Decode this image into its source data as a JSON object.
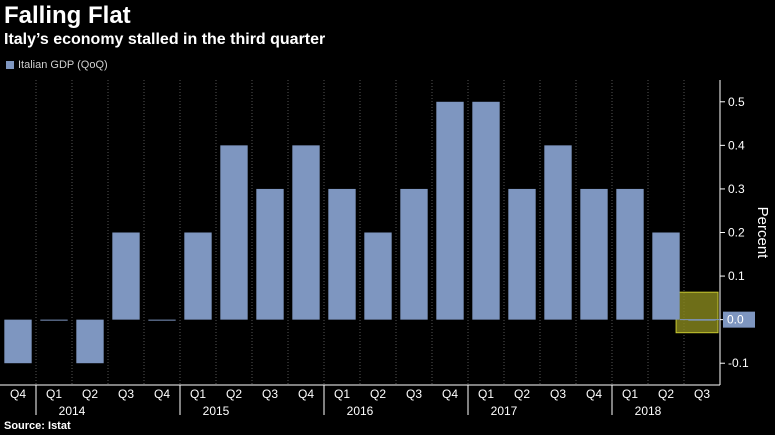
{
  "title": "Falling Flat",
  "subtitle": "Italy’s economy stalled in the third quarter",
  "source": "Source: Istat",
  "colors": {
    "background": "#000000",
    "bar": "#7e96c0",
    "highlight_fill": "#8a8a1e",
    "highlight_stroke": "#c8c830",
    "grid": "#555555",
    "axis": "#ffffff",
    "last_value_box": "#7e96c0"
  },
  "chart_data": {
    "type": "bar",
    "series": [
      {
        "name": "Italian GDP (QoQ)",
        "values": [
          -0.1,
          0.0,
          -0.1,
          0.2,
          0.0,
          0.2,
          0.4,
          0.3,
          0.4,
          0.3,
          0.2,
          0.3,
          0.5,
          0.5,
          0.3,
          0.4,
          0.3,
          0.3,
          0.2,
          0.0
        ]
      }
    ],
    "categories": [
      "Q4",
      "Q1",
      "Q2",
      "Q3",
      "Q4",
      "Q1",
      "Q2",
      "Q3",
      "Q4",
      "Q1",
      "Q2",
      "Q3",
      "Q4",
      "Q1",
      "Q2",
      "Q3",
      "Q4",
      "Q1",
      "Q2",
      "Q3"
    ],
    "year_labels": [
      {
        "label": "2014",
        "category_index": 2
      },
      {
        "label": "2015",
        "category_index": 6
      },
      {
        "label": "2016",
        "category_index": 10
      },
      {
        "label": "2017",
        "category_index": 14
      },
      {
        "label": "2018",
        "category_index": 18
      }
    ],
    "year_divider_after": [
      0,
      4,
      8,
      12,
      16
    ],
    "ylabel": "Percent",
    "y_axis_side": "right",
    "ylim": [
      -0.15,
      0.55
    ],
    "yticks": [
      -0.1,
      0.0,
      0.1,
      0.2,
      0.3,
      0.4,
      0.5
    ],
    "ytick_labels": [
      "-0.1",
      "0.0",
      "0.1",
      "0.2",
      "0.3",
      "0.4",
      "0.5"
    ],
    "last_value_label": "0.0",
    "highlight_category_index": 19,
    "grid": "vertical-dotted",
    "legend_position": "top-left"
  }
}
